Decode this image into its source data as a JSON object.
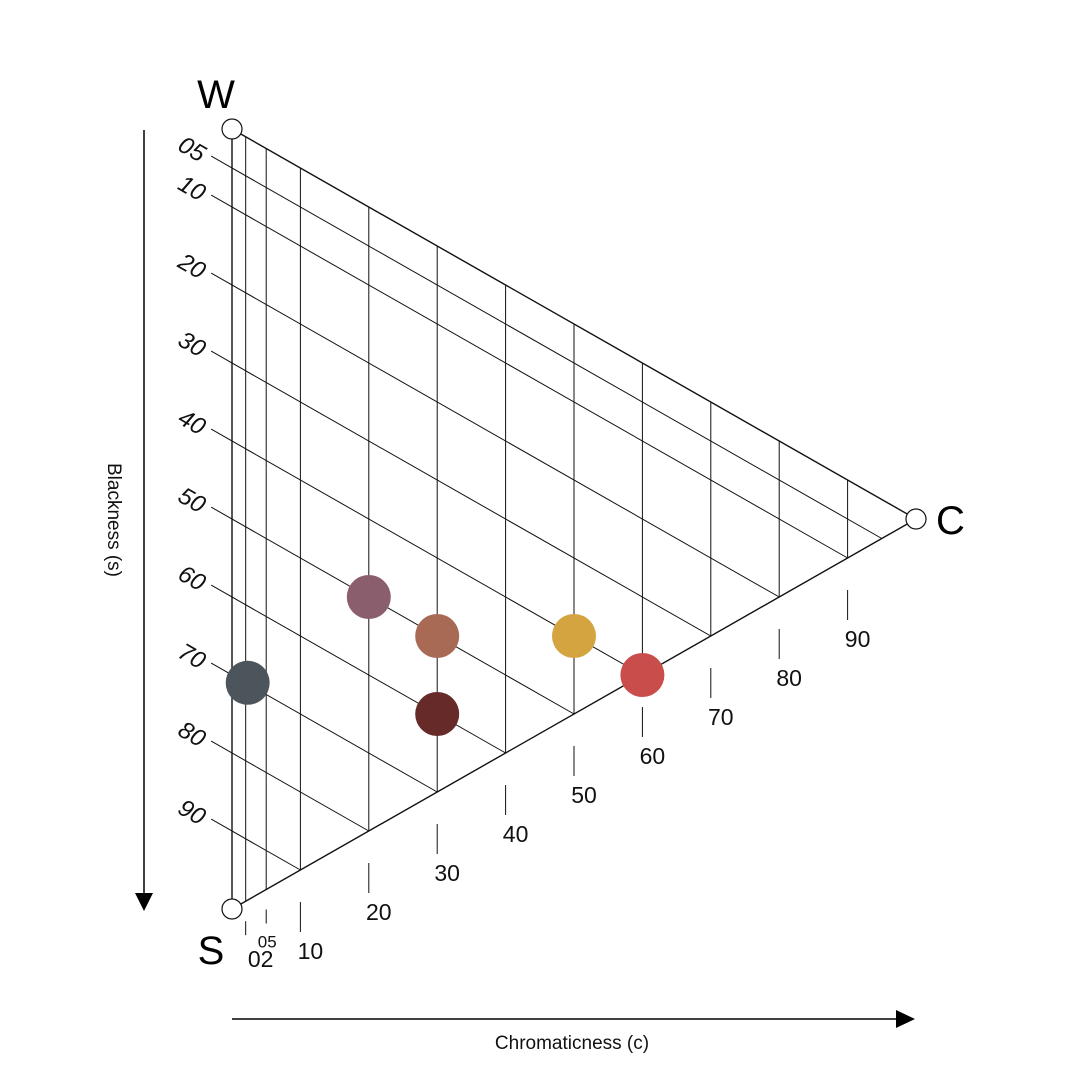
{
  "vertices": {
    "white": "W",
    "chromatic": "C",
    "black": "S"
  },
  "blackness_axis": {
    "title": "Blackness (s)",
    "ticks": [
      {
        "value": 5,
        "label": "05"
      },
      {
        "value": 10,
        "label": "10"
      },
      {
        "value": 20,
        "label": "20"
      },
      {
        "value": 30,
        "label": "30"
      },
      {
        "value": 40,
        "label": "40"
      },
      {
        "value": 50,
        "label": "50"
      },
      {
        "value": 60,
        "label": "60"
      },
      {
        "value": 70,
        "label": "70"
      },
      {
        "value": 80,
        "label": "80"
      },
      {
        "value": 90,
        "label": "90"
      }
    ]
  },
  "chromaticness_axis": {
    "title": "Chromaticness (c)",
    "ticks": [
      {
        "value": 2,
        "label": "02"
      },
      {
        "value": 5,
        "label": "05"
      },
      {
        "value": 10,
        "label": "10"
      },
      {
        "value": 20,
        "label": "20"
      },
      {
        "value": 30,
        "label": "30"
      },
      {
        "value": 40,
        "label": "40"
      },
      {
        "value": 50,
        "label": "50"
      },
      {
        "value": 60,
        "label": "60"
      },
      {
        "value": 70,
        "label": "70"
      },
      {
        "value": 80,
        "label": "80"
      },
      {
        "value": 90,
        "label": "90"
      }
    ]
  },
  "samples": [
    {
      "s": 40,
      "c": 50,
      "color": "#d4a441"
    },
    {
      "s": 40,
      "c": 60,
      "color": "#c94e4b"
    },
    {
      "s": 50,
      "c": 30,
      "color": "#a86955"
    },
    {
      "s": 50,
      "c": 20,
      "color": "#8a5e6d"
    },
    {
      "s": 60,
      "c": 30,
      "color": "#662a29"
    },
    {
      "s": 70,
      "c": 2,
      "color": "#4d555c"
    }
  ]
}
